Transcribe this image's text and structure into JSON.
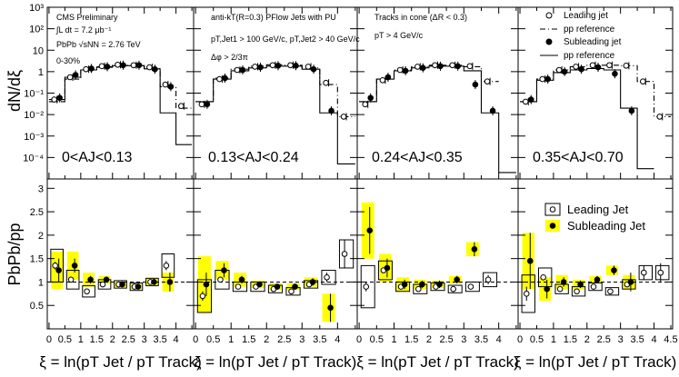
{
  "chart_data": {
    "type": "scatter",
    "title": "CMS Preliminary",
    "dataset": {
      "lumi": "∫L dt = 7.2 μb⁻¹",
      "energy": "PbPb √sNN = 2.76 TeV",
      "centrality": "0-30%",
      "jets": "anti-kT(R=0.3) PFlow Jets with PU",
      "cuts": "pT,Jet1 > 100 GeV/c, pT,Jet2 > 40 GeV/c",
      "dphi": "Δφ > 2/3π",
      "cone": "Tracks in cone (ΔR < 0.3)",
      "trackpt": "pT > 4 GeV/c"
    },
    "top_ylabel": "dN/dξ",
    "bottom_ylabel": "PbPb/pp",
    "xlabel": "ξ = ln(pT Jet / pT Track)",
    "xlim": [
      0,
      4.5
    ],
    "top_ylim_log": [
      1e-05,
      1000
    ],
    "bottom_ylim": [
      0,
      3.2
    ],
    "x_ticks": [
      "0",
      "0.5",
      "1",
      "1.5",
      "2",
      "2.5",
      "3",
      "3.5",
      "4",
      "4.5"
    ],
    "top_y_ticks": [
      "10⁻⁴",
      "10⁻³",
      "10⁻²",
      "10⁻¹",
      "1",
      "10",
      "10²",
      "10³"
    ],
    "bottom_y_ticks": [
      "0.5",
      "1",
      "1.5",
      "2",
      "2.5",
      "3"
    ],
    "legend_top": [
      "Leading jet",
      "pp reference",
      "Subleading jet",
      "pp reference"
    ],
    "legend_bottom": [
      "Leading Jet",
      "Subleading Jet"
    ],
    "bins": [
      0.25,
      0.75,
      1.25,
      1.75,
      2.25,
      2.75,
      3.25,
      3.75,
      4.25
    ],
    "panels": [
      {
        "label": "0<AJ<0.13",
        "top": {
          "leading": [
            0.05,
            0.55,
            1.3,
            1.8,
            2.1,
            2.0,
            1.6,
            0.25,
            0.025
          ],
          "leading_pp": [
            0.04,
            0.45,
            1.2,
            1.7,
            2.0,
            1.9,
            1.4,
            0.2,
            0.02
          ],
          "subleading": [
            0.06,
            0.7,
            1.4,
            1.7,
            2.0,
            2.0,
            1.3,
            0.2,
            null
          ],
          "subleading_pp": [
            0.05,
            0.55,
            1.2,
            1.6,
            1.9,
            1.9,
            1.35,
            0.012,
            0.0004
          ]
        },
        "ratio": {
          "leading": [
            1.35,
            1.05,
            0.8,
            0.95,
            0.95,
            0.9,
            1.0,
            1.35,
            null
          ],
          "leading_err": [
            0.08,
            0.06,
            0.04,
            0.04,
            0.03,
            0.03,
            0.04,
            0.1,
            null
          ],
          "leading_sys": [
            0.35,
            0.2,
            0.12,
            0.1,
            0.08,
            0.08,
            0.08,
            0.25,
            null
          ],
          "subleading": [
            1.25,
            1.35,
            1.05,
            1.05,
            0.95,
            0.9,
            1.0,
            1.0,
            null
          ],
          "subleading_err": [
            0.25,
            0.15,
            0.08,
            0.06,
            0.05,
            0.05,
            0.06,
            0.2,
            null
          ],
          "subleading_sys": [
            0.4,
            0.3,
            0.15,
            0.08,
            0.06,
            0.06,
            0.08,
            0.2,
            null
          ]
        }
      },
      {
        "label": "0.13<AJ<0.24",
        "top": {
          "leading": [
            0.03,
            0.45,
            1.2,
            1.7,
            2.0,
            2.0,
            1.7,
            0.3,
            0.008
          ],
          "leading_pp": [
            0.04,
            0.5,
            1.3,
            1.8,
            2.1,
            2.0,
            1.5,
            0.25,
            0.008
          ],
          "subleading": [
            0.03,
            0.5,
            1.2,
            1.6,
            1.9,
            1.9,
            1.3,
            0.015,
            null
          ],
          "subleading_pp": [
            0.04,
            0.45,
            1.1,
            1.5,
            1.8,
            1.8,
            1.3,
            0.012,
            5e-05
          ]
        },
        "ratio": {
          "leading": [
            0.7,
            1.05,
            0.9,
            0.9,
            0.85,
            0.8,
            0.95,
            1.1,
            1.6
          ],
          "leading_err": [
            0.1,
            0.05,
            0.04,
            0.04,
            0.03,
            0.03,
            0.04,
            0.1,
            0.3
          ],
          "leading_sys": [
            0.35,
            0.2,
            0.1,
            0.1,
            0.08,
            0.08,
            0.08,
            0.15,
            0.3
          ],
          "subleading": [
            0.95,
            1.25,
            1.05,
            0.95,
            0.9,
            0.9,
            1.0,
            0.45,
            null
          ],
          "subleading_err": [
            0.25,
            0.15,
            0.08,
            0.06,
            0.06,
            0.06,
            0.08,
            0.3,
            null
          ],
          "subleading_sys": [
            0.6,
            0.2,
            0.15,
            0.08,
            0.07,
            0.07,
            0.1,
            0.3,
            null
          ]
        }
      },
      {
        "label": "0.24<AJ<0.35",
        "top": {
          "leading": [
            0.03,
            0.4,
            1.2,
            1.7,
            2.0,
            2.0,
            1.8,
            0.35,
            null
          ],
          "leading_pp": [
            0.04,
            0.45,
            1.2,
            1.7,
            2.0,
            2.0,
            1.7,
            0.35,
            null
          ],
          "subleading": [
            0.06,
            0.55,
            1.1,
            1.5,
            1.8,
            1.8,
            0.25,
            0.015,
            null
          ],
          "subleading_pp": [
            0.04,
            0.45,
            1.1,
            1.5,
            1.8,
            1.8,
            1.1,
            0.012,
            2e-05
          ]
        },
        "ratio": {
          "leading": [
            0.9,
            1.25,
            0.9,
            0.85,
            0.9,
            0.85,
            0.9,
            1.05,
            null
          ],
          "leading_err": [
            0.1,
            0.05,
            0.04,
            0.04,
            0.03,
            0.03,
            0.04,
            0.1,
            null
          ],
          "leading_sys": [
            0.45,
            0.2,
            0.1,
            0.1,
            0.08,
            0.08,
            0.1,
            0.15,
            null
          ],
          "subleading": [
            2.1,
            1.3,
            0.95,
            0.95,
            0.95,
            1.05,
            1.7,
            null,
            null
          ],
          "subleading_err": [
            0.5,
            0.2,
            0.1,
            0.08,
            0.08,
            0.08,
            0.15,
            null,
            null
          ],
          "subleading_sys": [
            0.6,
            0.3,
            0.15,
            0.1,
            0.08,
            0.08,
            0.15,
            null,
            null
          ]
        }
      },
      {
        "label": "0.35<AJ<0.70",
        "top": {
          "leading": [
            0.04,
            0.45,
            1.2,
            1.7,
            2.0,
            2.0,
            1.9,
            0.35,
            0.008
          ],
          "leading_pp": [
            0.04,
            0.45,
            1.2,
            1.7,
            2.0,
            2.0,
            1.9,
            0.35,
            0.008
          ],
          "subleading": [
            0.05,
            0.45,
            1.0,
            1.3,
            1.6,
            0.8,
            0.015,
            null,
            null
          ],
          "subleading_pp": [
            0.04,
            0.4,
            0.9,
            1.2,
            1.4,
            1.2,
            0.02,
            3e-05,
            null
          ]
        },
        "ratio": {
          "leading": [
            0.75,
            1.1,
            0.85,
            0.8,
            0.9,
            0.8,
            0.95,
            1.2,
            1.2
          ],
          "leading_err": [
            0.15,
            0.05,
            0.04,
            0.04,
            0.03,
            0.03,
            0.05,
            0.15,
            0.2
          ],
          "leading_sys": [
            0.4,
            0.2,
            0.1,
            0.1,
            0.08,
            0.08,
            0.1,
            0.15,
            0.15
          ],
          "subleading": [
            1.45,
            0.85,
            1.0,
            0.95,
            1.05,
            1.25,
            1.0,
            null,
            null
          ],
          "subleading_err": [
            0.6,
            0.2,
            0.1,
            0.08,
            0.08,
            0.1,
            0.2,
            null,
            null
          ],
          "subleading_sys": [
            0.6,
            0.25,
            0.15,
            0.1,
            0.08,
            0.1,
            0.15,
            null,
            null
          ]
        }
      }
    ]
  }
}
